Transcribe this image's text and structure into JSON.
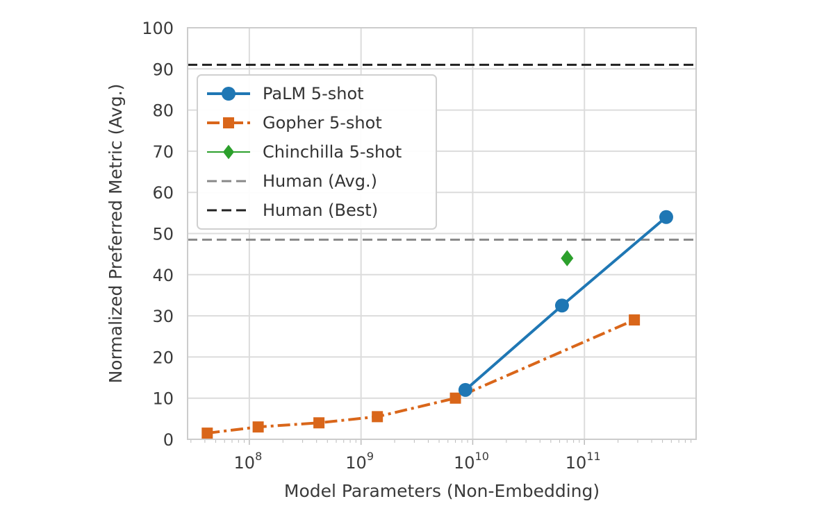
{
  "chart_data": {
    "type": "line",
    "title": "",
    "xlabel": "Model Parameters (Non-Embedding)",
    "ylabel": "Normalized Preferred Metric (Avg.)",
    "xscale": "log",
    "xlim": [
      28000000.0,
      1000000000000.0
    ],
    "ylim": [
      0,
      100
    ],
    "yticks": [
      "0",
      "10",
      "20",
      "30",
      "40",
      "50",
      "60",
      "70",
      "80",
      "90",
      "100"
    ],
    "xticks": [
      {
        "value": 100000000.0,
        "base": "10",
        "exp": "8"
      },
      {
        "value": 1000000000.0,
        "base": "10",
        "exp": "9"
      },
      {
        "value": 10000000000.0,
        "base": "10",
        "exp": "10"
      },
      {
        "value": 100000000000.0,
        "base": "10",
        "exp": "11"
      }
    ],
    "grid": true,
    "legend_position": "top-left",
    "series": [
      {
        "name": "PaLM 5-shot",
        "color": "#1f77b4",
        "style": "solid",
        "marker": "circle",
        "x": [
          8600000000.0,
          63000000000.0,
          540000000000.0
        ],
        "y": [
          12,
          32.5,
          54
        ]
      },
      {
        "name": "Gopher 5-shot",
        "color": "#d9661a",
        "style": "dashdot",
        "marker": "square",
        "x": [
          42000000.0,
          120000000.0,
          420000000.0,
          1400000000.0,
          7000000000.0,
          280000000000.0
        ],
        "y": [
          1.5,
          3,
          4,
          5.5,
          10,
          29
        ]
      },
      {
        "name": "Chinchilla 5-shot",
        "color": "#2ca02c",
        "style": "none",
        "marker": "diamond",
        "x": [
          70000000000.0
        ],
        "y": [
          44
        ]
      }
    ],
    "reference_lines": [
      {
        "name": "Human (Avg.)",
        "y": 48.5,
        "color": "#888888",
        "style": "dashed"
      },
      {
        "name": "Human (Best)",
        "y": 91,
        "color": "#222222",
        "style": "dashed"
      }
    ]
  }
}
